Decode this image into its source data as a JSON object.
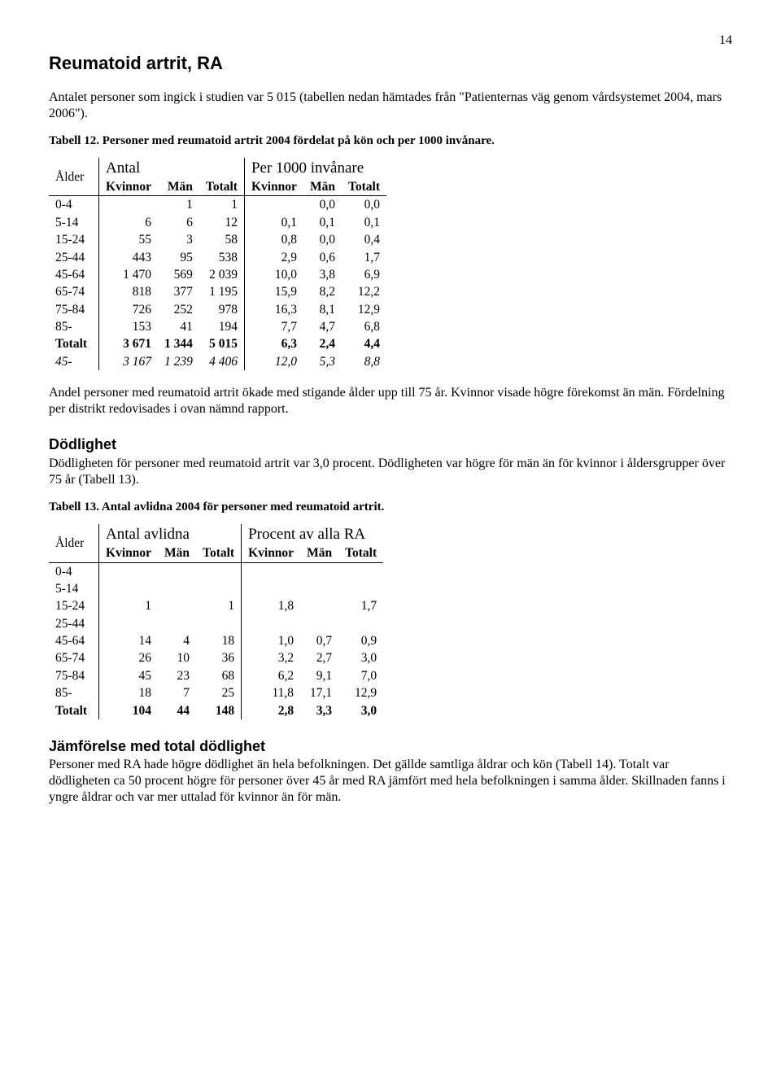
{
  "page_number": "14",
  "title": "Reumatoid artrit, RA",
  "intro": "Antalet personer som ingick i studien var 5 015 (tabellen nedan hämtades från \"Patienternas väg genom vårdsystemet 2004, mars 2006\").",
  "table12": {
    "caption": "Tabell 12. Personer med reumatoid artrit 2004 fördelat på kön och per 1000 invånare.",
    "corner": "Ålder",
    "group1": "Antal",
    "group2": "Per 1000 invånare",
    "cols": [
      "Kvinnor",
      "Män",
      "Totalt",
      "Kvinnor",
      "Män",
      "Totalt"
    ],
    "rows": [
      {
        "label": "0-4",
        "c": [
          "",
          "1",
          "1",
          "",
          "0,0",
          "0,0"
        ]
      },
      {
        "label": "5-14",
        "c": [
          "6",
          "6",
          "12",
          "0,1",
          "0,1",
          "0,1"
        ]
      },
      {
        "label": "15-24",
        "c": [
          "55",
          "3",
          "58",
          "0,8",
          "0,0",
          "0,4"
        ]
      },
      {
        "label": "25-44",
        "c": [
          "443",
          "95",
          "538",
          "2,9",
          "0,6",
          "1,7"
        ]
      },
      {
        "label": "45-64",
        "c": [
          "1 470",
          "569",
          "2 039",
          "10,0",
          "3,8",
          "6,9"
        ]
      },
      {
        "label": "65-74",
        "c": [
          "818",
          "377",
          "1 195",
          "15,9",
          "8,2",
          "12,2"
        ]
      },
      {
        "label": "75-84",
        "c": [
          "726",
          "252",
          "978",
          "16,3",
          "8,1",
          "12,9"
        ]
      },
      {
        "label": "85-",
        "c": [
          "153",
          "41",
          "194",
          "7,7",
          "4,7",
          "6,8"
        ]
      },
      {
        "label": "Totalt",
        "c": [
          "3 671",
          "1 344",
          "5 015",
          "6,3",
          "2,4",
          "4,4"
        ],
        "bold": true
      },
      {
        "label": "45-",
        "c": [
          "3 167",
          "1 239",
          "4 406",
          "12,0",
          "5,3",
          "8,8"
        ],
        "italic": true
      }
    ]
  },
  "para_after_t12": "Andel personer med reumatoid artrit ökade med stigande ålder upp till 75 år. Kvinnor visade högre förekomst än män. Fördelning per distrikt redovisades i ovan nämnd rapport.",
  "mortality_head": "Dödlighet",
  "mortality_para": "Dödligheten för personer med reumatoid artrit var 3,0 procent. Dödligheten var högre för män än för kvinnor i åldersgrupper över 75 år (Tabell 13).",
  "table13": {
    "caption": "Tabell 13. Antal avlidna 2004 för personer med reumatoid artrit.",
    "corner": "Ålder",
    "group1": "Antal avlidna",
    "group2": "Procent av alla RA",
    "cols": [
      "Kvinnor",
      "Män",
      "Totalt",
      "Kvinnor",
      "Män",
      "Totalt"
    ],
    "rows": [
      {
        "label": "0-4",
        "c": [
          "",
          "",
          "",
          "",
          "",
          ""
        ]
      },
      {
        "label": "5-14",
        "c": [
          "",
          "",
          "",
          "",
          "",
          ""
        ]
      },
      {
        "label": "15-24",
        "c": [
          "1",
          "",
          "1",
          "1,8",
          "",
          "1,7"
        ]
      },
      {
        "label": "25-44",
        "c": [
          "",
          "",
          "",
          "",
          "",
          ""
        ]
      },
      {
        "label": "45-64",
        "c": [
          "14",
          "4",
          "18",
          "1,0",
          "0,7",
          "0,9"
        ]
      },
      {
        "label": "65-74",
        "c": [
          "26",
          "10",
          "36",
          "3,2",
          "2,7",
          "3,0"
        ]
      },
      {
        "label": "75-84",
        "c": [
          "45",
          "23",
          "68",
          "6,2",
          "9,1",
          "7,0"
        ]
      },
      {
        "label": "85-",
        "c": [
          "18",
          "7",
          "25",
          "11,8",
          "17,1",
          "12,9"
        ]
      },
      {
        "label": "Totalt",
        "c": [
          "104",
          "44",
          "148",
          "2,8",
          "3,3",
          "3,0"
        ],
        "bold": true
      }
    ]
  },
  "compare_head": "Jämförelse med total dödlighet",
  "compare_para": "Personer med RA hade högre dödlighet än hela befolkningen. Det gällde samtliga åldrar och kön (Tabell 14). Totalt var dödligheten ca 50 procent högre för personer över 45 år med RA jämfört med hela befolkningen i samma ålder. Skillnaden fanns i yngre åldrar och var mer uttalad för kvinnor än för män."
}
